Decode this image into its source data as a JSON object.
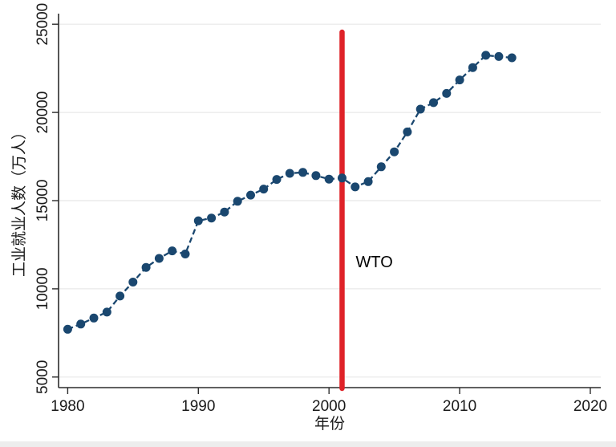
{
  "figure": {
    "background": "#ffffff",
    "bottom_strip_color": "#ededed"
  },
  "chart_data": {
    "type": "scatter",
    "title": "",
    "xlabel": "年份",
    "ylabel": "工业就业人数（万人）",
    "xlim": [
      1979.3,
      2020.8
    ],
    "ylim": [
      4400,
      25600
    ],
    "x_ticks": [
      1980,
      1990,
      2000,
      2010,
      2020
    ],
    "y_ticks": [
      5000,
      10000,
      15000,
      20000,
      25000
    ],
    "grid": "horizontal",
    "legend_position": "none",
    "series": [
      {
        "name": "工业就业人数",
        "line_style": "dashed",
        "x": [
          1980,
          1981,
          1982,
          1983,
          1984,
          1985,
          1986,
          1987,
          1988,
          1989,
          1990,
          1991,
          1992,
          1993,
          1994,
          1995,
          1996,
          1997,
          1998,
          1999,
          2000,
          2001,
          2002,
          2003,
          2004,
          2005,
          2006,
          2007,
          2008,
          2009,
          2010,
          2011,
          2012,
          2013,
          2014
        ],
        "values": [
          7707,
          8003,
          8346,
          8679,
          9590,
          10384,
          11216,
          11726,
          12152,
          11976,
          13856,
          14015,
          14355,
          14965,
          15312,
          15655,
          16203,
          16547,
          16600,
          16421,
          16219,
          16284,
          15780,
          16077,
          16920,
          17766,
          18894,
          20186,
          20553,
          21080,
          21842,
          22544,
          23241,
          23170,
          23099
        ]
      }
    ],
    "annotations": [
      {
        "type": "vline",
        "x": 2001,
        "label": "WTO"
      }
    ],
    "colors": {
      "marker": "#1a476f",
      "series_line": "#1a476f",
      "event_line": "#df2228",
      "grid": "#e8e8e8",
      "axis": "#2b2b2b",
      "text": "#1a1a1a",
      "annotation_text": "#000000"
    }
  }
}
